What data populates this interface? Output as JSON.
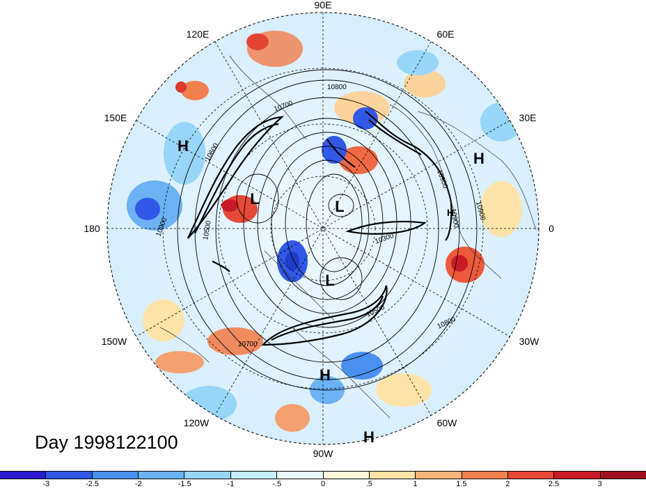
{
  "map": {
    "longitude_labels": [
      "90E",
      "60E",
      "30E",
      "0",
      "30W",
      "60W",
      "90W",
      "120W",
      "150W",
      "180",
      "150E",
      "120E"
    ],
    "pressure_systems": [
      "H",
      "H",
      "H",
      "H",
      "H",
      "L",
      "L",
      "L"
    ],
    "contour_labels": [
      "10800",
      "10700",
      "10600",
      "10900",
      "10900",
      "10900",
      "10500",
      "10300",
      "10500",
      "10800",
      "10700",
      "10900"
    ],
    "colors": {
      "ocean_neutral": "#e8f6ff",
      "negative_strong": "#1e3cc8",
      "positive_strong": "#c8142a",
      "contour": "#000000"
    }
  },
  "title": "Day 1998122100",
  "colorbar": {
    "colors": [
      "#2d1bcf",
      "#3158e6",
      "#4b8ff0",
      "#6cb2f5",
      "#98d6f9",
      "#c6eefc",
      "#e9f8fd",
      "#fdf7d8",
      "#fde3a8",
      "#f8b47a",
      "#f2804f",
      "#ea4836",
      "#c81b27",
      "#9f0f1e"
    ],
    "tick_labels": [
      "-3",
      "-2.5",
      "-2",
      "-1.5",
      "-1",
      "-.5",
      "0",
      ".5",
      "1",
      "1.5",
      "2",
      "2.5",
      "3"
    ]
  }
}
